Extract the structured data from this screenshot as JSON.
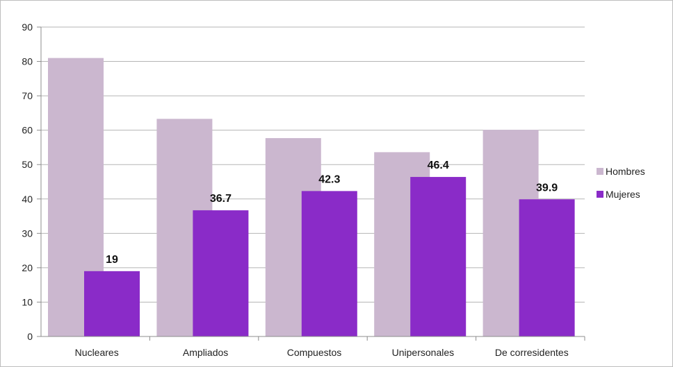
{
  "chart_data": {
    "type": "bar",
    "title": "",
    "xlabel": "",
    "ylabel": "",
    "categories": [
      "Nucleares",
      "Ampliados",
      "Compuestos",
      "Unipersonales",
      "De corresidentes"
    ],
    "series": [
      {
        "name": "Hombres",
        "color": "#cbb7cf",
        "values": [
          81,
          63.3,
          57.7,
          53.6,
          60.1
        ],
        "labels": [
          "",
          "",
          "",
          "",
          ""
        ]
      },
      {
        "name": "Mujeres",
        "color": "#8a2bc8",
        "values": [
          19,
          36.7,
          42.3,
          46.4,
          39.9
        ],
        "labels": [
          "19",
          "36.7",
          "42.3",
          "46.4",
          "39.9"
        ]
      }
    ],
    "ylim": [
      0,
      90
    ],
    "yticks": [
      0,
      10,
      20,
      30,
      40,
      50,
      60,
      70,
      80,
      90
    ],
    "grid": true,
    "legend": "right"
  }
}
